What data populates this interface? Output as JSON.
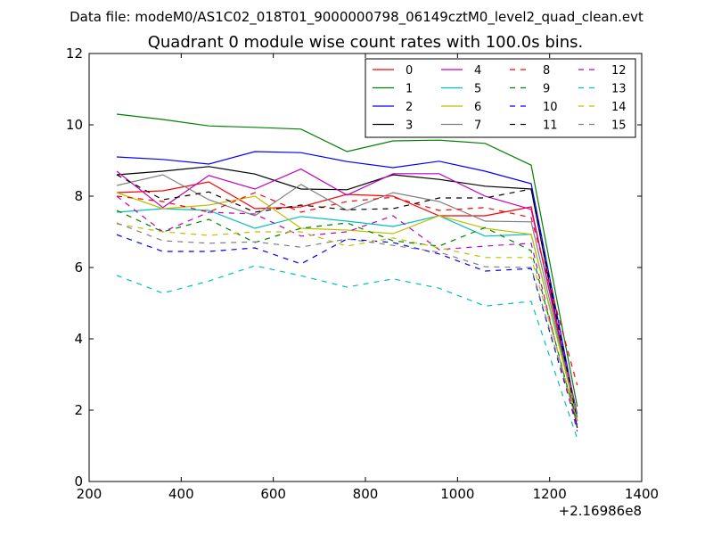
{
  "chart_data": {
    "type": "line",
    "suptitle": "Data file: modeM0/AS1C02_018T01_9000000798_06149cztM0_level2_quad_clean.evt",
    "title": "Quadrant 0 module wise count rates with 100.0s bins.",
    "xlabel": "",
    "ylabel": "",
    "x_offset_label": "+2.16986e8",
    "xlim": [
      200,
      1400
    ],
    "ylim": [
      0,
      12
    ],
    "xticks": [
      200,
      400,
      600,
      800,
      1000,
      1200,
      1400
    ],
    "yticks": [
      0,
      2,
      4,
      6,
      8,
      10,
      12
    ],
    "grid": false,
    "legend_location": "upper right",
    "legend_columns": 4,
    "x": [
      260,
      360,
      460,
      560,
      660,
      760,
      860,
      960,
      1060,
      1160,
      1260
    ],
    "series": [
      {
        "name": "0",
        "color": "#ff0000",
        "dash": "solid",
        "values": [
          8.1,
          8.15,
          8.4,
          7.65,
          7.7,
          8.05,
          8.0,
          7.45,
          7.45,
          7.7,
          1.7
        ]
      },
      {
        "name": "1",
        "color": "#008000",
        "dash": "solid",
        "values": [
          10.3,
          10.15,
          9.97,
          9.93,
          9.88,
          9.25,
          9.55,
          9.57,
          9.48,
          8.87,
          2.1
        ]
      },
      {
        "name": "2",
        "color": "#0000ff",
        "dash": "solid",
        "values": [
          9.1,
          9.03,
          8.9,
          9.25,
          9.22,
          8.97,
          8.8,
          8.98,
          8.7,
          8.35,
          1.8
        ]
      },
      {
        "name": "3",
        "color": "#000000",
        "dash": "solid",
        "values": [
          8.6,
          8.7,
          8.83,
          8.62,
          8.2,
          8.18,
          8.6,
          8.47,
          8.28,
          8.2,
          1.5
        ]
      },
      {
        "name": "4",
        "color": "#bf00bf",
        "dash": "solid",
        "values": [
          8.7,
          7.68,
          8.58,
          8.2,
          8.76,
          8.03,
          8.63,
          8.63,
          8.0,
          7.63,
          1.9
        ]
      },
      {
        "name": "5",
        "color": "#00bfbf",
        "dash": "solid",
        "values": [
          7.55,
          7.65,
          7.6,
          7.1,
          7.43,
          7.3,
          7.15,
          7.45,
          6.88,
          6.93,
          1.85
        ]
      },
      {
        "name": "6",
        "color": "#bfbf00",
        "dash": "solid",
        "values": [
          8.1,
          7.65,
          7.75,
          8.0,
          7.1,
          7.05,
          6.95,
          7.45,
          7.1,
          6.93,
          1.75
        ]
      },
      {
        "name": "7",
        "color": "#808080",
        "dash": "solid",
        "values": [
          8.3,
          8.6,
          7.9,
          7.45,
          8.33,
          7.6,
          8.1,
          7.85,
          7.3,
          7.28,
          1.8
        ]
      },
      {
        "name": "8",
        "color": "#ff0000",
        "dash": "dashed",
        "values": [
          8.0,
          7.85,
          7.55,
          8.1,
          7.55,
          7.85,
          7.97,
          7.6,
          7.68,
          7.4,
          2.7
        ]
      },
      {
        "name": "9",
        "color": "#008000",
        "dash": "dashed",
        "values": [
          7.6,
          7.0,
          7.35,
          6.7,
          7.1,
          7.25,
          6.75,
          6.6,
          7.12,
          6.47,
          1.6
        ]
      },
      {
        "name": "10",
        "color": "#0000ff",
        "dash": "dashed",
        "values": [
          6.92,
          6.45,
          6.45,
          6.55,
          6.1,
          6.8,
          6.7,
          6.38,
          5.9,
          5.97,
          1.55
        ]
      },
      {
        "name": "11",
        "color": "#000000",
        "dash": "dashed",
        "values": [
          8.6,
          7.9,
          8.12,
          7.55,
          7.75,
          7.62,
          7.65,
          7.95,
          7.95,
          8.2,
          1.7
        ]
      },
      {
        "name": "12",
        "color": "#bf00bf",
        "dash": "dashed",
        "values": [
          8.0,
          7.0,
          7.55,
          7.5,
          6.88,
          7.0,
          7.45,
          6.5,
          6.6,
          6.68,
          1.4
        ]
      },
      {
        "name": "13",
        "color": "#00bfbf",
        "dash": "dashed",
        "values": [
          5.78,
          5.28,
          5.62,
          6.05,
          5.77,
          5.45,
          5.68,
          5.42,
          4.92,
          5.05,
          1.2
        ]
      },
      {
        "name": "14",
        "color": "#bfbf00",
        "dash": "dashed",
        "values": [
          7.22,
          7.0,
          6.9,
          7.0,
          7.0,
          6.6,
          6.83,
          6.55,
          6.28,
          6.28,
          1.7
        ]
      },
      {
        "name": "15",
        "color": "#808080",
        "dash": "dashed",
        "values": [
          7.25,
          6.75,
          6.68,
          6.72,
          6.57,
          6.8,
          6.62,
          6.43,
          6.02,
          6.0,
          1.65
        ]
      }
    ]
  }
}
